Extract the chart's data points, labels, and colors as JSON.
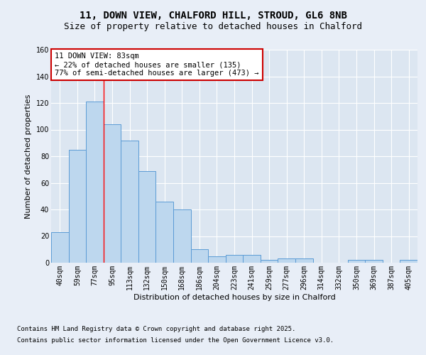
{
  "title_line1": "11, DOWN VIEW, CHALFORD HILL, STROUD, GL6 8NB",
  "title_line2": "Size of property relative to detached houses in Chalford",
  "xlabel": "Distribution of detached houses by size in Chalford",
  "ylabel": "Number of detached properties",
  "categories": [
    "40sqm",
    "59sqm",
    "77sqm",
    "95sqm",
    "113sqm",
    "132sqm",
    "150sqm",
    "168sqm",
    "186sqm",
    "204sqm",
    "223sqm",
    "241sqm",
    "259sqm",
    "277sqm",
    "296sqm",
    "314sqm",
    "332sqm",
    "350sqm",
    "369sqm",
    "387sqm",
    "405sqm"
  ],
  "values": [
    23,
    85,
    121,
    104,
    92,
    69,
    46,
    40,
    10,
    5,
    6,
    6,
    2,
    3,
    3,
    0,
    0,
    2,
    2,
    0,
    2
  ],
  "bar_color": "#bdd7ee",
  "bar_edge_color": "#5b9bd5",
  "vline_x_index": 2.5,
  "annotation_text": "11 DOWN VIEW: 83sqm\n← 22% of detached houses are smaller (135)\n77% of semi-detached houses are larger (473) →",
  "annotation_box_color": "#ffffff",
  "annotation_box_edge_color": "#cc0000",
  "ylim": [
    0,
    160
  ],
  "yticks": [
    0,
    20,
    40,
    60,
    80,
    100,
    120,
    140,
    160
  ],
  "background_color": "#e8eef7",
  "plot_background": "#dce6f1",
  "grid_color": "#ffffff",
  "footer_line1": "Contains HM Land Registry data © Crown copyright and database right 2025.",
  "footer_line2": "Contains public sector information licensed under the Open Government Licence v3.0.",
  "title_fontsize": 10,
  "subtitle_fontsize": 9,
  "axis_label_fontsize": 8,
  "tick_fontsize": 7,
  "annotation_fontsize": 7.5,
  "footer_fontsize": 6.5
}
